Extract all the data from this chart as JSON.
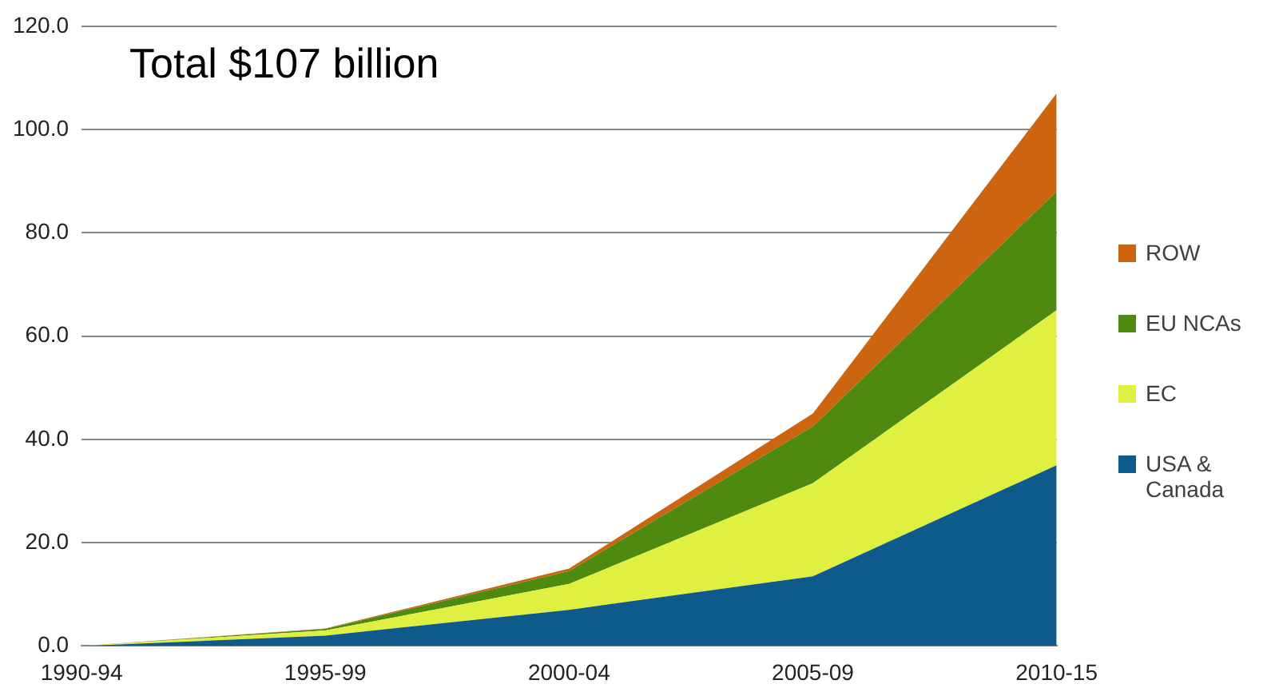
{
  "chart_data": {
    "type": "area",
    "stacked": true,
    "title": "Total $107 billion",
    "categories": [
      "1990-94",
      "1995-99",
      "2000-04",
      "2005-09",
      "2010-15"
    ],
    "series": [
      {
        "name": "USA & Canada",
        "color": "#0e5a8a",
        "values": [
          0,
          2,
          7,
          13.5,
          35
        ]
      },
      {
        "name": "EC",
        "color": "#e0f040",
        "values": [
          0,
          1,
          5,
          18,
          30
        ]
      },
      {
        "name": "EU NCAs",
        "color": "#4f8a10",
        "values": [
          0,
          0.3,
          2.5,
          11,
          23
        ]
      },
      {
        "name": "ROW",
        "color": "#cc6410",
        "values": [
          0,
          0.1,
          0.5,
          2.5,
          19
        ]
      }
    ],
    "ylim": [
      0,
      120
    ],
    "yticks": [
      {
        "value": 0,
        "label": "0.0"
      },
      {
        "value": 20,
        "label": "20.0"
      },
      {
        "value": 40,
        "label": "40.0"
      },
      {
        "value": 60,
        "label": "60.0"
      },
      {
        "value": 80,
        "label": "80.0"
      },
      {
        "value": 100,
        "label": "100.0"
      },
      {
        "value": 120,
        "label": "120.0"
      }
    ],
    "grid": "y",
    "legend": "right"
  }
}
